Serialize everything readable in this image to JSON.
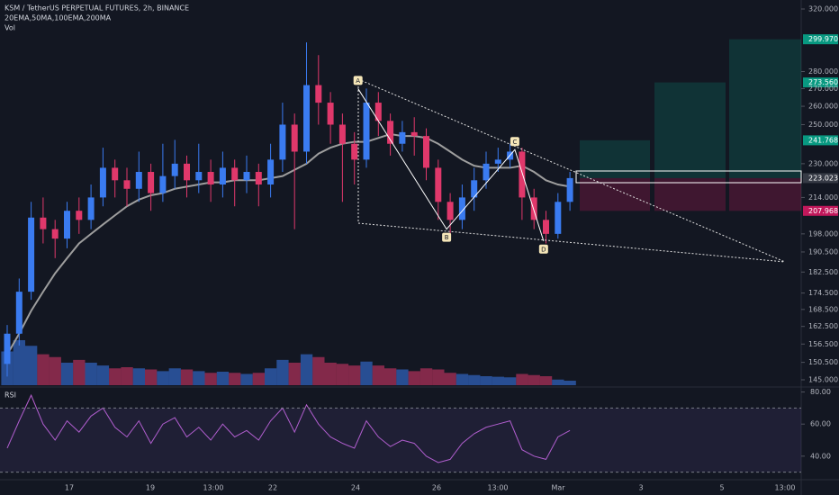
{
  "chart_data": {
    "type": "candlestick",
    "title": "KSM / TetherUS PERPETUAL FUTURES, 2h, BINANCE",
    "indicators_label": "20EMA,50MA,100EMA,200MA",
    "volume_label": "Vol",
    "rsi_label": "RSI",
    "log_scale": true,
    "up_color": "#3a7bf0",
    "down_color": "#e0386b",
    "ema_color": "#9e9e9e",
    "rsi_color": "#b85fd0",
    "ylim": [
      145,
      320
    ],
    "yticks": [
      {
        "value": 320,
        "label": "320.000"
      },
      {
        "value": 280,
        "label": "280.000"
      },
      {
        "value": 270,
        "label": "270.000"
      },
      {
        "value": 260,
        "label": "260.000"
      },
      {
        "value": 250,
        "label": "250.000"
      },
      {
        "value": 230,
        "label": "230.000"
      },
      {
        "value": 214,
        "label": "214.000"
      },
      {
        "value": 198,
        "label": "198.000"
      },
      {
        "value": 190.5,
        "label": "190.500"
      },
      {
        "value": 182.5,
        "label": "182.500"
      },
      {
        "value": 174.5,
        "label": "174.500"
      },
      {
        "value": 168.5,
        "label": "168.500"
      },
      {
        "value": 162.5,
        "label": "162.500"
      },
      {
        "value": 156.5,
        "label": "156.500"
      },
      {
        "value": 150.5,
        "label": "150.500"
      },
      {
        "value": 145,
        "label": "145.000"
      }
    ],
    "rsi_ylim": [
      27,
      82
    ],
    "rsi_yticks": [
      {
        "value": 80,
        "label": "80.00"
      },
      {
        "value": 60,
        "label": "60.00"
      },
      {
        "value": 40,
        "label": "40.00"
      }
    ],
    "rsi_bands": [
      70,
      30
    ],
    "time_labels": [
      "17",
      "19",
      "13:00",
      "22",
      "24",
      "26",
      "13:00",
      "Mar",
      "3",
      "5",
      "13:00"
    ],
    "open": [
      150,
      160,
      175,
      205,
      200,
      196,
      208,
      204,
      214,
      228,
      222,
      218,
      226,
      216,
      224,
      230,
      222,
      226,
      220,
      228,
      222,
      226,
      220,
      232,
      250,
      236,
      272,
      262,
      250,
      240,
      232,
      262,
      252,
      240,
      246,
      244,
      228,
      212,
      204,
      214,
      222,
      230,
      232,
      236,
      214,
      204,
      198,
      212
    ],
    "high": [
      163,
      180,
      212,
      214,
      204,
      212,
      214,
      220,
      238,
      232,
      228,
      236,
      230,
      240,
      242,
      234,
      240,
      232,
      236,
      232,
      234,
      230,
      240,
      262,
      256,
      298,
      290,
      268,
      256,
      246,
      270,
      268,
      256,
      252,
      254,
      248,
      232,
      216,
      220,
      228,
      236,
      238,
      240,
      238,
      218,
      208,
      216,
      226
    ],
    "low": [
      146,
      156,
      172,
      194,
      188,
      192,
      198,
      200,
      210,
      214,
      210,
      212,
      208,
      212,
      218,
      214,
      216,
      212,
      214,
      210,
      216,
      210,
      214,
      226,
      200,
      230,
      250,
      240,
      212,
      220,
      228,
      244,
      234,
      236,
      234,
      222,
      204,
      198,
      200,
      208,
      218,
      226,
      228,
      204,
      200,
      194,
      196,
      208
    ],
    "close": [
      160,
      175,
      205,
      200,
      196,
      208,
      204,
      214,
      228,
      222,
      218,
      226,
      216,
      224,
      230,
      222,
      226,
      220,
      228,
      222,
      226,
      220,
      232,
      250,
      236,
      272,
      262,
      250,
      240,
      232,
      262,
      252,
      240,
      246,
      244,
      228,
      212,
      204,
      214,
      222,
      230,
      232,
      236,
      214,
      204,
      198,
      212,
      223.023
    ],
    "volume": [
      60,
      80,
      70,
      55,
      50,
      40,
      45,
      40,
      35,
      30,
      32,
      30,
      28,
      25,
      30,
      28,
      25,
      22,
      24,
      22,
      20,
      22,
      30,
      45,
      40,
      55,
      50,
      40,
      38,
      35,
      42,
      35,
      30,
      28,
      25,
      30,
      28,
      22,
      20,
      18,
      16,
      15,
      14,
      20,
      18,
      16,
      10,
      8
    ],
    "ema": [
      153,
      160,
      168,
      175,
      182,
      188,
      194,
      198,
      202,
      206,
      210,
      213,
      215,
      216,
      218,
      219,
      220,
      221,
      221,
      222,
      222,
      222,
      223,
      224,
      227,
      230,
      235,
      238,
      240,
      241,
      241,
      243,
      245,
      244,
      244,
      243,
      240,
      236,
      232,
      229,
      228,
      228,
      228,
      229,
      226,
      222,
      220,
      219
    ],
    "rsi": [
      45,
      62,
      78,
      60,
      50,
      62,
      55,
      65,
      70,
      58,
      52,
      62,
      48,
      60,
      64,
      52,
      58,
      50,
      60,
      52,
      56,
      50,
      62,
      70,
      55,
      72,
      60,
      52,
      48,
      45,
      62,
      52,
      46,
      50,
      48,
      40,
      36,
      38,
      48,
      54,
      58,
      60,
      62,
      44,
      40,
      38,
      52,
      56
    ],
    "pattern": [
      {
        "label": "A",
        "at": 29.3,
        "price": 270
      },
      {
        "label": "B",
        "at": 36.7,
        "price": 200
      },
      {
        "label": "C",
        "at": 42.4,
        "price": 237
      },
      {
        "label": "D",
        "at": 44.8,
        "price": 195
      }
    ],
    "levels": [
      {
        "value": 299.97,
        "label": "299.970",
        "color": "#089981"
      },
      {
        "value": 273.56,
        "label": "273.560",
        "color": "#089981"
      },
      {
        "value": 241.768,
        "label": "241.768",
        "color": "#089981"
      },
      {
        "value": 223.023,
        "label": "223.023",
        "color": "#363a45"
      },
      {
        "value": 207.968,
        "label": "207.968",
        "color": "#c2185b"
      }
    ]
  }
}
